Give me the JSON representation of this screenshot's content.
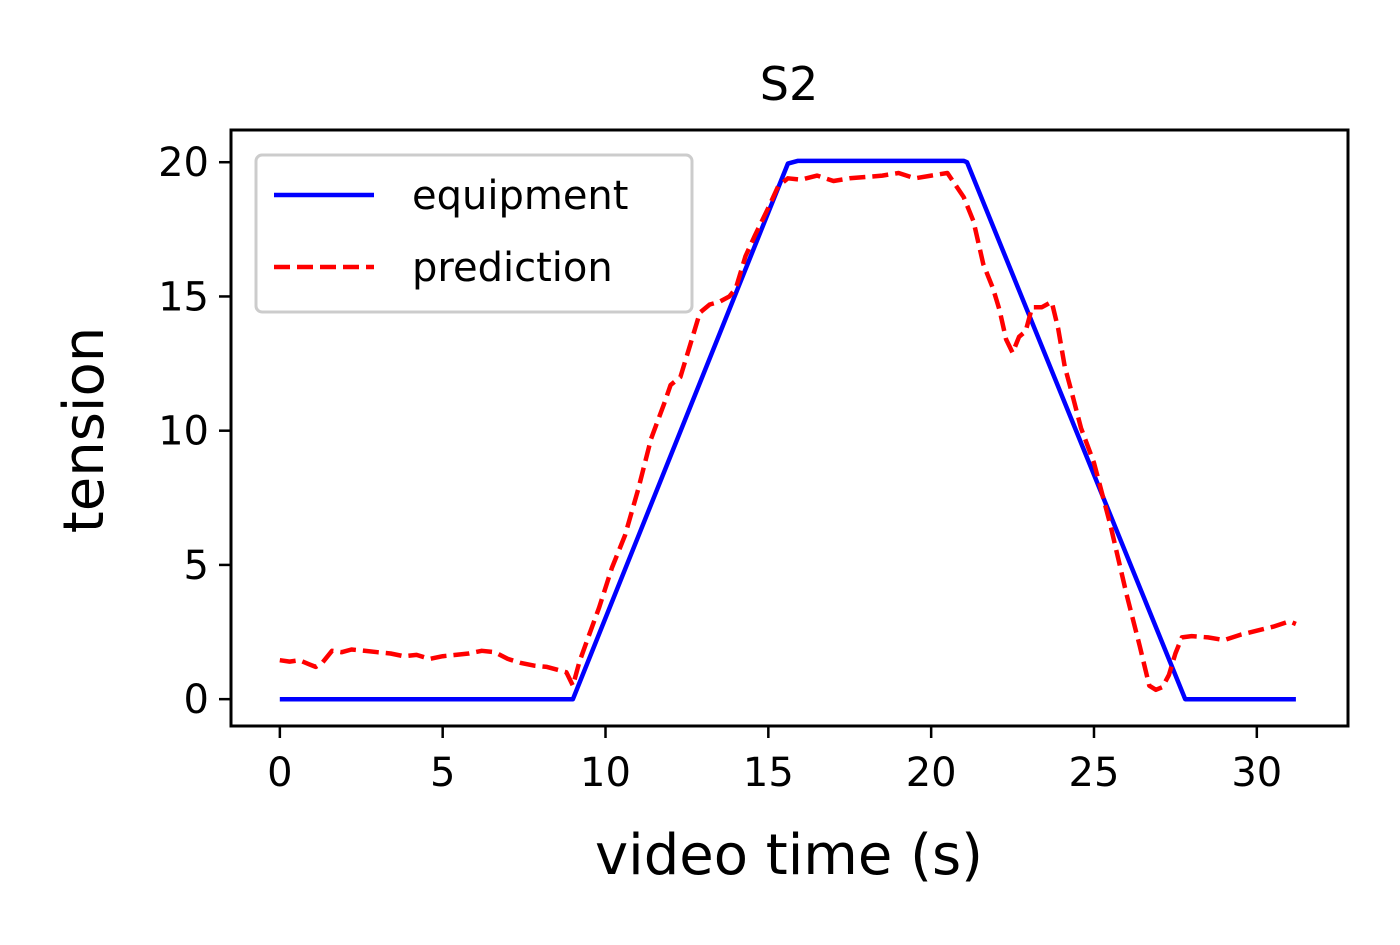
{
  "chart_data": {
    "type": "line",
    "title": "S2",
    "xlabel": "video time (s)",
    "ylabel": "tension",
    "xlim": [
      -1.5,
      32.8
    ],
    "ylim": [
      -1.0,
      21.2
    ],
    "xticks": [
      0,
      5,
      10,
      15,
      20,
      25,
      30
    ],
    "yticks": [
      0,
      5,
      10,
      15,
      20
    ],
    "grid": false,
    "legend_position": "upper left",
    "series": [
      {
        "name": "equipment",
        "color": "#0000ff",
        "style": "solid",
        "x": [
          0,
          9.0,
          15.6,
          15.9,
          16.0,
          21.0,
          21.1,
          27.8,
          31.2
        ],
        "y": [
          0,
          0,
          19.95,
          20.05,
          20.05,
          20.05,
          20.0,
          0,
          0
        ]
      },
      {
        "name": "prediction",
        "color": "#ff0000",
        "style": "dashed",
        "x": [
          0,
          0.3,
          0.6,
          0.9,
          1.1,
          1.3,
          1.6,
          1.9,
          2.2,
          2.6,
          3.0,
          3.4,
          3.8,
          4.2,
          4.6,
          5.0,
          5.4,
          5.8,
          6.2,
          6.6,
          7.0,
          7.4,
          7.8,
          8.2,
          8.5,
          8.8,
          9.0,
          9.2,
          9.5,
          9.8,
          10.2,
          10.6,
          11.0,
          11.4,
          11.8,
          12.0,
          12.3,
          12.6,
          12.9,
          13.2,
          13.5,
          13.8,
          14.0,
          14.3,
          14.6,
          15.0,
          15.3,
          15.6,
          16.0,
          16.5,
          17.0,
          17.5,
          18.0,
          18.5,
          19.0,
          19.5,
          20.0,
          20.5,
          21.0,
          21.3,
          21.6,
          21.9,
          22.1,
          22.3,
          22.5,
          22.7,
          22.9,
          23.1,
          23.4,
          23.7,
          23.9,
          24.1,
          24.3,
          24.6,
          25.0,
          25.5,
          26.0,
          26.4,
          26.7,
          26.9,
          27.1,
          27.3,
          27.5,
          27.7,
          28.0,
          28.5,
          29.0,
          29.5,
          30.0,
          30.5,
          31.0,
          31.2
        ],
        "y": [
          1.45,
          1.4,
          1.45,
          1.3,
          1.2,
          1.35,
          1.8,
          1.75,
          1.85,
          1.8,
          1.75,
          1.7,
          1.6,
          1.65,
          1.5,
          1.6,
          1.65,
          1.7,
          1.8,
          1.75,
          1.5,
          1.35,
          1.25,
          1.2,
          1.1,
          1.0,
          0.5,
          1.4,
          2.4,
          3.4,
          4.9,
          6.1,
          7.8,
          9.7,
          11.0,
          11.7,
          12.0,
          13.2,
          14.4,
          14.7,
          14.8,
          15.0,
          15.3,
          16.5,
          17.3,
          18.3,
          19.1,
          19.4,
          19.35,
          19.5,
          19.3,
          19.4,
          19.45,
          19.5,
          19.6,
          19.4,
          19.5,
          19.6,
          18.7,
          17.8,
          16.2,
          15.3,
          14.5,
          13.4,
          12.9,
          13.5,
          13.7,
          14.6,
          14.6,
          14.8,
          13.8,
          12.4,
          11.5,
          10.1,
          8.8,
          6.5,
          3.9,
          2.0,
          0.5,
          0.35,
          0.45,
          0.9,
          1.7,
          2.3,
          2.35,
          2.3,
          2.2,
          2.4,
          2.55,
          2.7,
          2.9,
          2.8
        ]
      }
    ]
  }
}
